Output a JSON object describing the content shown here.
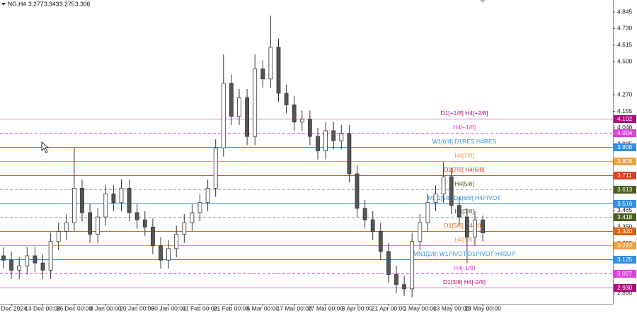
{
  "chart_data": {
    "type": "candlestick",
    "header": {
      "symbol": "NG,H4",
      "open": 3.277,
      "high": 3.343,
      "low": 3.275,
      "close": 3.306
    },
    "categories": [
      null,
      "3 Dec 2024",
      null,
      null,
      null,
      "13 Dec 00:00",
      null,
      null,
      null,
      "26 Dec 00:00",
      null,
      null,
      null,
      "8 Jan 00:00",
      null,
      null,
      null,
      "20 Jan 00:00",
      null,
      null,
      null,
      "30 Jan 00:00",
      null,
      null,
      null,
      "11 Feb 00:00",
      null,
      null,
      null,
      "21 Feb 00:00",
      null,
      null,
      null,
      "5 Mar 00:00",
      null,
      null,
      null,
      "17 Mar 00:00",
      null,
      null,
      null,
      "27 Mar 00:00",
      null,
      null,
      null,
      "8 Apr 00:00",
      null,
      null,
      null,
      "21 Apr 00:00",
      null,
      null,
      null,
      "1 May 00:00",
      null,
      null,
      null,
      "13 May 00:00",
      null,
      null,
      null,
      "23 May 00:00"
    ],
    "open": [
      3.15,
      3.12,
      3.05,
      3.08,
      3.15,
      3.1,
      3.05,
      3.25,
      3.32,
      3.38,
      3.62,
      3.45,
      3.3,
      3.42,
      3.58,
      3.52,
      3.62,
      3.45,
      3.4,
      3.35,
      3.22,
      3.12,
      3.2,
      3.3,
      3.38,
      3.45,
      3.52,
      3.62,
      3.9,
      4.35,
      4.12,
      4.25,
      3.98,
      4.45,
      4.38,
      4.6,
      4.28,
      4.2,
      4.08,
      4.1,
      3.98,
      3.88,
      4.02,
      3.95,
      4.0,
      3.72,
      3.48,
      3.4,
      3.32,
      3.18,
      3.02,
      2.95,
      2.92,
      3.25,
      3.38,
      3.52,
      3.58,
      3.7,
      3.5,
      3.42,
      3.28,
      3.4
    ],
    "high": [
      3.21,
      3.18,
      3.14,
      3.21,
      3.21,
      3.16,
      3.31,
      3.38,
      3.44,
      3.9,
      3.68,
      3.51,
      3.48,
      3.64,
      3.64,
      3.68,
      3.68,
      3.51,
      3.46,
      3.41,
      3.28,
      3.26,
      3.36,
      3.44,
      3.51,
      3.58,
      3.68,
      3.96,
      4.55,
      4.41,
      4.31,
      4.31,
      4.55,
      4.51,
      4.82,
      4.66,
      4.34,
      4.26,
      4.16,
      4.16,
      4.04,
      4.08,
      4.08,
      4.06,
      4.06,
      3.78,
      3.54,
      3.46,
      3.38,
      3.24,
      3.08,
      3.01,
      3.31,
      3.44,
      3.58,
      3.64,
      3.8,
      3.76,
      3.56,
      3.48,
      3.46,
      3.43
    ],
    "low": [
      3.06,
      2.99,
      2.99,
      3.02,
      3.04,
      2.99,
      2.99,
      3.19,
      3.26,
      3.32,
      3.39,
      3.24,
      3.24,
      3.36,
      3.46,
      3.46,
      3.39,
      3.34,
      3.29,
      3.16,
      3.06,
      3.06,
      3.14,
      3.24,
      3.32,
      3.39,
      3.46,
      3.56,
      3.84,
      4.06,
      4.06,
      3.92,
      3.92,
      4.32,
      4.32,
      4.22,
      4.14,
      4.02,
      4.02,
      3.92,
      3.82,
      3.82,
      3.89,
      3.89,
      3.66,
      3.42,
      3.34,
      3.26,
      3.12,
      2.96,
      2.89,
      2.87,
      2.86,
      3.19,
      3.32,
      3.46,
      3.52,
      3.44,
      3.36,
      3.1,
      3.22,
      3.25
    ],
    "close": [
      3.12,
      3.05,
      3.08,
      3.15,
      3.1,
      3.05,
      3.25,
      3.32,
      3.38,
      3.62,
      3.45,
      3.3,
      3.42,
      3.58,
      3.52,
      3.62,
      3.45,
      3.4,
      3.35,
      3.22,
      3.12,
      3.2,
      3.3,
      3.38,
      3.45,
      3.52,
      3.62,
      3.9,
      4.35,
      4.12,
      4.25,
      3.98,
      4.45,
      4.38,
      4.6,
      4.28,
      4.2,
      4.08,
      4.1,
      3.98,
      3.88,
      4.02,
      3.95,
      4.0,
      3.72,
      3.48,
      3.4,
      3.32,
      3.18,
      3.02,
      2.95,
      2.92,
      3.25,
      3.38,
      3.52,
      3.58,
      3.7,
      3.5,
      3.42,
      3.28,
      3.4,
      3.31
    ],
    "up_color": "#ffffff",
    "down_color": "#555555",
    "wick_color": "#333333",
    "ylim": [
      2.816,
      4.929
    ],
    "yticks": [
      4.845,
      {
        "value": 4.73,
        "label": "4.730"
      },
      4.615,
      {
        "value": 4.5,
        "label": "4.500"
      },
      {
        "value": 4.27,
        "label": "4.270"
      },
      4.155,
      {
        "value": 4.04,
        "label": "4.040"
      },
      3.925,
      3.465,
      {
        "value": 3.35,
        "label": "3.350"
      },
      3.235,
      {
        "value": 2.89,
        "label": "2.890"
      }
    ],
    "levels": [
      {
        "name": "D1[+1/8] H4[+2/8]",
        "value": 4.102,
        "color": "#b0107a",
        "line_color": "#d878c8",
        "dashed": false
      },
      {
        "name": "H4[+1/8]",
        "value": 4.004,
        "color": "#e040e0",
        "line_color": "#e040e0",
        "dashed": true
      },
      {
        "name": "W1[6/8] D1RES H4RES",
        "value": 3.906,
        "color": "#2f8fe0",
        "line_color": "#2f8fe0",
        "dashed": false
      },
      {
        "name": "H4[7/8]",
        "value": 3.809,
        "color": "#f0a040",
        "line_color": "#f0a040",
        "dashed": false
      },
      {
        "name": "D1[7/8] H4[6/8]",
        "value": 3.711,
        "color": "#e04020",
        "line_color": "#e05030",
        "dashed": false
      },
      {
        "name": "H4[5/8]",
        "value": 3.613,
        "color": "#4a6020",
        "line_color": "#aaaaaa",
        "dashed": true
      },
      {
        "name": "MN1[5/8] D1[6/8] H4PIVOT",
        "value": 3.516,
        "color": "#2f8fe0",
        "line_color": "#2f8fe0",
        "dashed": false
      },
      {
        "name": "H4[3/8]",
        "value": 3.418,
        "color": "#4a6020",
        "line_color": "#aaaaaa",
        "dashed": true
      },
      {
        "name": "D1[5/8] H4[2/8]",
        "value": 3.32,
        "value_label": "3.320",
        "color": "#e06010",
        "line_color": "#e06010",
        "dashed": false
      },
      {
        "name": "H4[1/8]",
        "value": 3.223,
        "color": "#f0a040",
        "line_color": "#f0a040",
        "dashed": false
      },
      {
        "name": "MN1[2/8] W1PIVOT D1PIVOT H4SUP",
        "value": 3.125,
        "color": "#2f8fe0",
        "line_color": "#2f8fe0",
        "dashed": false
      },
      {
        "name": "H4[-1/8]",
        "value": 3.027,
        "color": "#e040e0",
        "line_color": "#e040e0",
        "dashed": true
      },
      {
        "name": "D1[3/8] H4[-2/8]",
        "value": 2.93,
        "value_label": "2.930",
        "color": "#b0107a",
        "line_color": "#d878c8",
        "dashed": false
      }
    ]
  }
}
